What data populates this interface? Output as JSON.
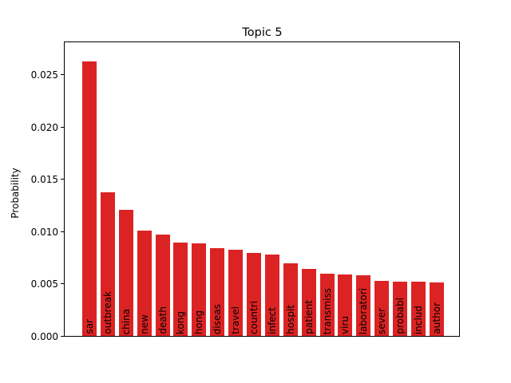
{
  "chart_data": {
    "type": "bar",
    "title": "Topic 5",
    "xlabel": "",
    "ylabel": "Probability",
    "categories": [
      "sar",
      "outbreak",
      "china",
      "new",
      "death",
      "kong",
      "hong",
      "diseas",
      "travel",
      "countri",
      "infect",
      "hospit",
      "patient",
      "transmiss",
      "viru",
      "laboratori",
      "sever",
      "probabl",
      "includ",
      "author"
    ],
    "values": [
      0.0264,
      0.0138,
      0.0121,
      0.0101,
      0.0097,
      0.009,
      0.0089,
      0.0084,
      0.0083,
      0.008,
      0.0078,
      0.007,
      0.0064,
      0.006,
      0.0059,
      0.0058,
      0.0053,
      0.0052,
      0.0052,
      0.0051
    ],
    "ylim": [
      0,
      0.0282
    ],
    "yticks": [
      0.0,
      0.005,
      0.01,
      0.015,
      0.02,
      0.025
    ],
    "ytick_labels": [
      "0.000",
      "0.005",
      "0.010",
      "0.015",
      "0.020",
      "0.025"
    ],
    "bar_color": "#dc2323",
    "bar_label_color": "#000000",
    "grid": false,
    "legend_position": "none",
    "bar_label_placement": "inside-bottom-rotated-90"
  }
}
